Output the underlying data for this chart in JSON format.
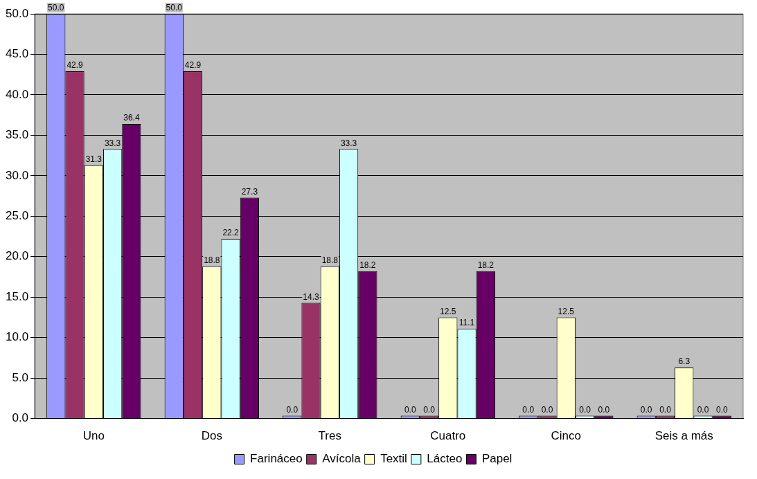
{
  "chart_data": {
    "type": "bar",
    "categories": [
      "Uno",
      "Dos",
      "Tres",
      "Cuatro",
      "Cinco",
      "Seis a más"
    ],
    "series": [
      {
        "name": "Farináceo",
        "color": "#9999ff",
        "values": [
          50.0,
          50.0,
          0.0,
          0.0,
          0.0,
          0.0
        ],
        "value_labels": [
          "50.0",
          "50.0",
          "0.0",
          "0.0",
          "0.0",
          "0.0"
        ]
      },
      {
        "name": "Avícola",
        "color": "#993366",
        "values": [
          42.9,
          42.9,
          14.3,
          0.0,
          0.0,
          0.0
        ],
        "value_labels": [
          "42.9",
          "42.9",
          "14.3",
          "0.0",
          "0.0",
          "0.0"
        ]
      },
      {
        "name": "Textil",
        "color": "#ffffcc",
        "values": [
          31.3,
          18.8,
          18.8,
          12.5,
          12.5,
          6.3
        ],
        "value_labels": [
          "31.3",
          "18.8",
          "18.8",
          "12.5",
          "12.5",
          "6.3"
        ]
      },
      {
        "name": "Lácteo",
        "color": "#ccffff",
        "values": [
          33.3,
          22.2,
          33.3,
          11.1,
          0.0,
          0.0
        ],
        "value_labels": [
          "33.3",
          "22.2",
          "33.3",
          "11.1",
          "0.0",
          "0.0"
        ]
      },
      {
        "name": "Papel",
        "color": "#660066",
        "values": [
          36.4,
          27.3,
          18.2,
          18.2,
          0.0,
          0.0
        ],
        "value_labels": [
          "36.4",
          "27.3",
          "18.2",
          "18.2",
          "0.0",
          "0.0"
        ]
      }
    ],
    "ylim": [
      0,
      50
    ],
    "yticks": [
      {
        "value": 0,
        "label": "0.0"
      },
      {
        "value": 5,
        "label": "5.0"
      },
      {
        "value": 10,
        "label": "10.0"
      },
      {
        "value": 15,
        "label": "15.0"
      },
      {
        "value": 20,
        "label": "20.0"
      },
      {
        "value": 25,
        "label": "25.0"
      },
      {
        "value": 30,
        "label": "30.0"
      },
      {
        "value": 35,
        "label": "35.0"
      },
      {
        "value": 40,
        "label": "40.0"
      },
      {
        "value": 45,
        "label": "45.0"
      },
      {
        "value": 50,
        "label": "50.0"
      }
    ],
    "grid": "y",
    "legend": "bottom"
  }
}
